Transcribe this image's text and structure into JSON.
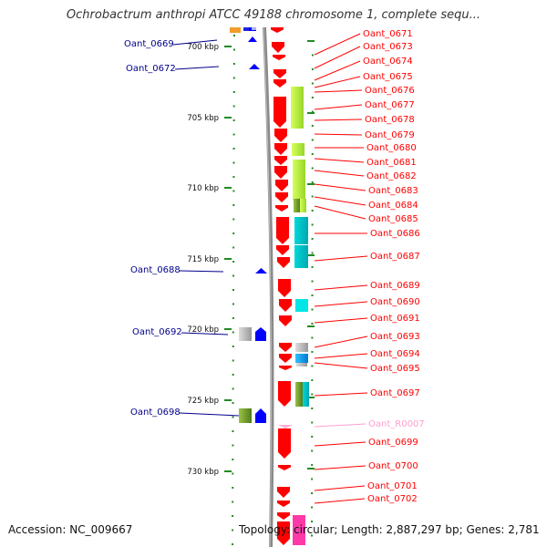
{
  "title": "Ochrobactrum anthropi ATCC 49188 chromosome 1, complete sequ...",
  "footer": {
    "accession": "Accession: NC_009667",
    "topology": "Topology: circular; Length: 2,887,297 bp; Genes: 2,781"
  },
  "colors": {
    "cds": "#ff0000",
    "left_label": "#00008b",
    "right_label": "#ff0000",
    "rna_label": "#ff9fd0",
    "backbone": "#808080",
    "tick": "#228b22"
  },
  "scale": {
    "labels": [
      "700 kbp",
      "705 kbp",
      "710 kbp",
      "715 kbp",
      "720 kbp",
      "725 kbp",
      "730 kbp"
    ]
  },
  "left_genes": [
    "Oant_0669",
    "Oant_0672",
    "Oant_0688",
    "Oant_0692",
    "Oant_0698"
  ],
  "right_genes": [
    "Oant_0671",
    "Oant_0673",
    "Oant_0674",
    "Oant_0675",
    "Oant_0676",
    "Oant_0677",
    "Oant_0678",
    "Oant_0679",
    "Oant_0680",
    "Oant_0681",
    "Oant_0682",
    "Oant_0683",
    "Oant_0684",
    "Oant_0685",
    "Oant_0686",
    "Oant_0687",
    "Oant_0689",
    "Oant_0690",
    "Oant_0691",
    "Oant_0693",
    "Oant_0694",
    "Oant_0695",
    "Oant_0697",
    "Oant_R0007",
    "Oant_0699",
    "Oant_0700",
    "Oant_0701",
    "Oant_0702"
  ]
}
